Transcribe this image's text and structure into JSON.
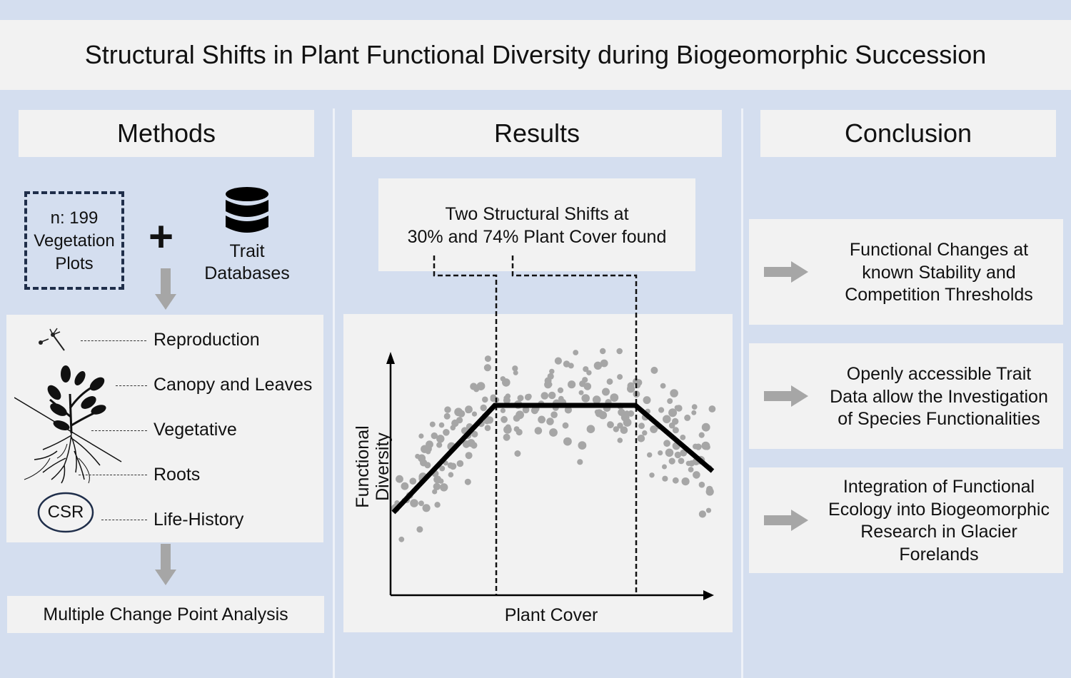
{
  "title": "Structural Shifts in Plant Functional Diversity during Biogeomorphic Succession",
  "columns": {
    "methods": "Methods",
    "results": "Results",
    "conclusion": "Conclusion"
  },
  "methods": {
    "plots_line1": "n: 199",
    "plots_line2": "Vegetation",
    "plots_line3": "Plots",
    "plus": "+",
    "db_line1": "Trait",
    "db_line2": "Databases",
    "traits": {
      "reproduction": "Reproduction",
      "canopy": "Canopy and Leaves",
      "vegetative": "Vegetative",
      "roots": "Roots",
      "life_history": "Life-History",
      "csr": "CSR"
    },
    "analysis": "Multiple Change Point Analysis"
  },
  "results": {
    "callout_line1": "Two Structural Shifts at",
    "callout_line2": "30% and 74% Plant Cover found",
    "y_label_line1": "Functional",
    "y_label_line2": "Diversity",
    "x_label": "Plant Cover"
  },
  "conclusions": [
    {
      "line1": "Functional Changes at",
      "line2": "known Stability and",
      "line3": "Competition Thresholds",
      "line4": ""
    },
    {
      "line1": "Openly accessible Trait",
      "line2": "Data allow the Investigation",
      "line3": "of Species Functionalities",
      "line4": ""
    },
    {
      "line1": "Integration of Functional",
      "line2": "Ecology into Biogeomorphic",
      "line3": "Research in Glacier",
      "line4": "Forelands"
    }
  ],
  "colors": {
    "background": "#d4deef",
    "panel": "#f2f2f2",
    "arrow": "#a6a6a6",
    "points": "#a6a6a6",
    "dash_box": "#1f2e4a"
  }
}
